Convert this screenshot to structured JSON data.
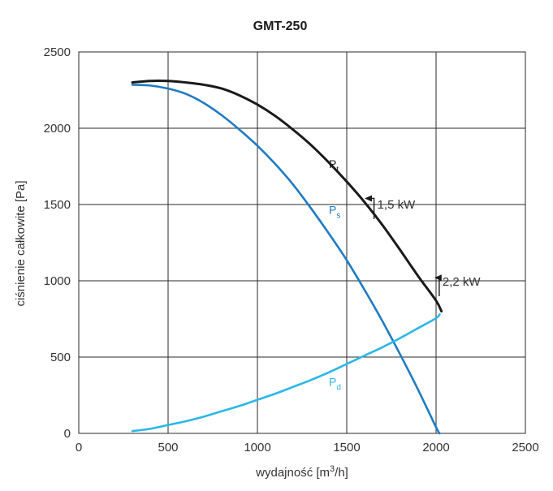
{
  "chart_data": {
    "type": "line",
    "title": "GMT-250",
    "xlabel": "wydajność [m³/h]",
    "xlabel_main": "wydajność [m",
    "xlabel_sup": "3",
    "xlabel_end": "/h]",
    "ylabel": "ciśnienie całkowite [Pa]",
    "xlim": [
      0,
      2500
    ],
    "ylim": [
      0,
      2500
    ],
    "x_ticks": [
      0,
      500,
      1000,
      1500,
      2000,
      2500
    ],
    "y_ticks": [
      0,
      500,
      1000,
      1500,
      2000,
      2500
    ],
    "grid": true,
    "colors": {
      "pt": "#1a1a1a",
      "ps": "#1f7bc4",
      "pd": "#2bb7e6",
      "grid": "#2a2a2a",
      "text": "#333333"
    },
    "series": [
      {
        "key": "pt",
        "name": "Pt",
        "name_main": "P",
        "name_sub": "t",
        "label_at": [
          1400,
          1740
        ],
        "x": [
          300,
          400,
          500,
          600,
          700,
          800,
          900,
          1000,
          1100,
          1200,
          1300,
          1400,
          1500,
          1600,
          1700,
          1800,
          1900,
          2000,
          2030
        ],
        "values": [
          2300,
          2310,
          2310,
          2300,
          2285,
          2260,
          2215,
          2155,
          2080,
          1990,
          1890,
          1775,
          1650,
          1515,
          1365,
          1200,
          1030,
          870,
          800
        ]
      },
      {
        "key": "ps",
        "name": "Ps",
        "name_main": "P",
        "name_sub": "s",
        "label_at": [
          1400,
          1440
        ],
        "x": [
          300,
          400,
          500,
          600,
          700,
          800,
          900,
          1000,
          1100,
          1200,
          1300,
          1400,
          1500,
          1600,
          1700,
          1800,
          1900,
          2000,
          2020
        ],
        "values": [
          2285,
          2280,
          2260,
          2225,
          2165,
          2085,
          1990,
          1885,
          1765,
          1630,
          1475,
          1310,
          1135,
          940,
          735,
          515,
          285,
          40,
          0
        ]
      },
      {
        "key": "pd",
        "name": "Pd",
        "name_main": "P",
        "name_sub": "d",
        "label_at": [
          1400,
          310
        ],
        "x": [
          300,
          400,
          500,
          600,
          700,
          800,
          900,
          1000,
          1100,
          1200,
          1300,
          1400,
          1500,
          1600,
          1700,
          1800,
          1900,
          2000,
          2020
        ],
        "values": [
          15,
          30,
          55,
          80,
          110,
          145,
          180,
          220,
          260,
          305,
          350,
          400,
          455,
          510,
          565,
          625,
          690,
          755,
          780
        ]
      }
    ],
    "annotations": [
      {
        "text": "1,5 kW",
        "x": 1600,
        "y": 1540,
        "label_x": 1680,
        "label_y": 1500
      },
      {
        "text": "2,2 kW",
        "x": 1990,
        "y": 1020,
        "label_x": 2045,
        "label_y": 995
      }
    ]
  }
}
